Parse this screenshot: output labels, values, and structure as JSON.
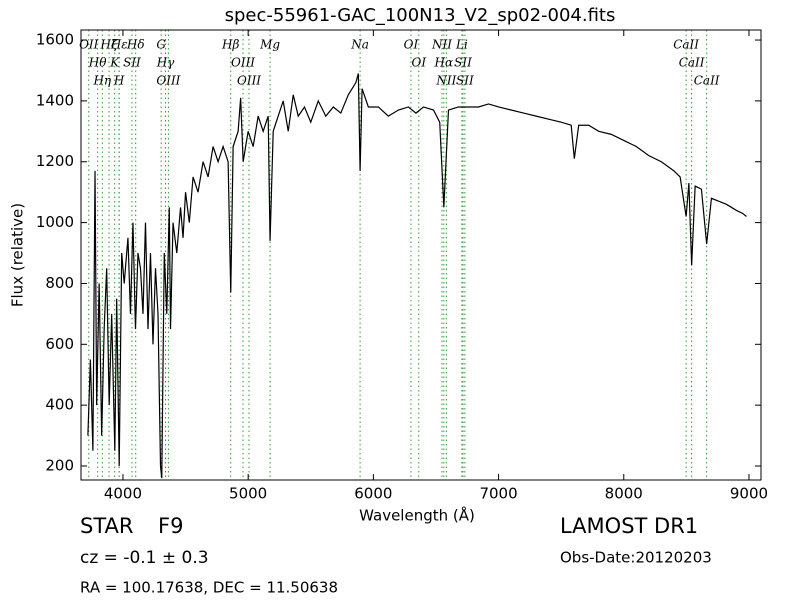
{
  "chart_data": {
    "type": "line",
    "title": "spec-55961-GAC_100N13_V2_sp02-004.fits",
    "x_label": "Wavelength (Å)",
    "y_label": "Flux (relative)",
    "xlim": [
      3665,
      9096
    ],
    "ylim": [
      154,
      1633
    ],
    "xticks": [
      4000,
      5000,
      6000,
      7000,
      8000,
      9000
    ],
    "yticks": [
      200,
      400,
      600,
      800,
      1000,
      1200,
      1400,
      1600
    ],
    "color": "#000000",
    "line_color": "#2ca02c",
    "x": [
      3720,
      3740,
      3760,
      3777,
      3790,
      3810,
      3830,
      3850,
      3870,
      3890,
      3910,
      3935,
      3950,
      3970,
      3990,
      4010,
      4040,
      4060,
      4080,
      4100,
      4120,
      4140,
      4160,
      4180,
      4200,
      4220,
      4240,
      4260,
      4280,
      4300,
      4310,
      4330,
      4350,
      4370,
      4380,
      4400,
      4430,
      4460,
      4480,
      4500,
      4530,
      4560,
      4600,
      4640,
      4680,
      4720,
      4760,
      4800,
      4840,
      4861,
      4880,
      4920,
      4940,
      4960,
      5000,
      5040,
      5080,
      5120,
      5160,
      5175,
      5200,
      5240,
      5280,
      5320,
      5360,
      5400,
      5450,
      5500,
      5560,
      5620,
      5680,
      5740,
      5800,
      5860,
      5880,
      5894,
      5910,
      5960,
      6040,
      6120,
      6200,
      6280,
      6340,
      6400,
      6480,
      6530,
      6563,
      6600,
      6680,
      6760,
      6840,
      6920,
      7000,
      7100,
      7200,
      7300,
      7400,
      7500,
      7580,
      7605,
      7640,
      7720,
      7800,
      7900,
      8000,
      8100,
      8200,
      8300,
      8400,
      8450,
      8498,
      8520,
      8542,
      8570,
      8620,
      8662,
      8700,
      8760,
      8820,
      8900,
      8950,
      8980
    ],
    "values": [
      300,
      550,
      250,
      1170,
      400,
      800,
      300,
      650,
      850,
      400,
      700,
      250,
      750,
      200,
      900,
      800,
      950,
      700,
      1000,
      650,
      900,
      850,
      700,
      1000,
      650,
      900,
      600,
      850,
      700,
      200,
      160,
      900,
      700,
      1050,
      650,
      1000,
      900,
      1050,
      950,
      1100,
      1000,
      1150,
      1100,
      1200,
      1150,
      1250,
      1200,
      1250,
      1200,
      770,
      1250,
      1300,
      1410,
      1200,
      1300,
      1250,
      1350,
      1300,
      1350,
      940,
      1300,
      1350,
      1400,
      1300,
      1420,
      1350,
      1380,
      1330,
      1400,
      1350,
      1380,
      1360,
      1420,
      1460,
      1490,
      1170,
      1440,
      1380,
      1380,
      1350,
      1370,
      1380,
      1360,
      1380,
      1370,
      1330,
      1050,
      1370,
      1380,
      1380,
      1380,
      1390,
      1380,
      1370,
      1360,
      1350,
      1340,
      1330,
      1320,
      1210,
      1320,
      1320,
      1300,
      1290,
      1270,
      1250,
      1220,
      1200,
      1170,
      1150,
      1020,
      1130,
      860,
      1120,
      1110,
      930,
      1080,
      1070,
      1060,
      1040,
      1030,
      1020
    ],
    "lines": [
      {
        "label": "OII",
        "wavelength": 3727
      },
      {
        "label": "Hθ",
        "wavelength": 3798
      },
      {
        "label": "Hη",
        "wavelength": 3835
      },
      {
        "label": "Hζ",
        "wavelength": 3889
      },
      {
        "label": "K",
        "wavelength": 3934
      },
      {
        "label": "H",
        "wavelength": 3969
      },
      {
        "label": "Hε",
        "wavelength": 3970
      },
      {
        "label": "SII",
        "wavelength": 4072
      },
      {
        "label": "Hδ",
        "wavelength": 4102
      },
      {
        "label": "G",
        "wavelength": 4305
      },
      {
        "label": "Hγ",
        "wavelength": 4340
      },
      {
        "label": "OIII",
        "wavelength": 4363
      },
      {
        "label": "Hβ",
        "wavelength": 4861
      },
      {
        "label": "OIII",
        "wavelength": 4959
      },
      {
        "label": "OIII",
        "wavelength": 5007
      },
      {
        "label": "Mg",
        "wavelength": 5175
      },
      {
        "label": "Na",
        "wavelength": 5894
      },
      {
        "label": "OI",
        "wavelength": 6300
      },
      {
        "label": "OI",
        "wavelength": 6363
      },
      {
        "label": "NII",
        "wavelength": 6548
      },
      {
        "label": "Hα",
        "wavelength": 6563
      },
      {
        "label": "NII",
        "wavelength": 6583
      },
      {
        "label": "Li",
        "wavelength": 6707
      },
      {
        "label": "SII",
        "wavelength": 6716
      },
      {
        "label": "SII",
        "wavelength": 6731
      },
      {
        "label": "CaII",
        "wavelength": 8498
      },
      {
        "label": "CaII",
        "wavelength": 8542
      },
      {
        "label": "CaII",
        "wavelength": 8662
      }
    ],
    "annotations": {
      "object": "STAR",
      "subclass": "F9",
      "redshift": "cz = -0.1 ± 0.3",
      "coords": "RA = 100.17638, DEC = 11.50638",
      "survey": "LAMOST DR1",
      "date": "Obs-Date:20120203"
    }
  }
}
